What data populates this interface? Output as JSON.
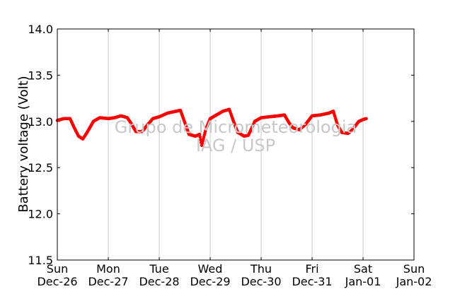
{
  "chart_data": {
    "type": "scatter",
    "ylabel": "Battery voltage (Volt)",
    "ylim": [
      11.5,
      14.0
    ],
    "yticks": [
      "11.5",
      "12.0",
      "12.5",
      "13.0",
      "13.5",
      "14.0"
    ],
    "xlim": [
      "2010-12-26",
      "2011-01-02"
    ],
    "xticks": [
      {
        "day": "Sun",
        "date": "Dec-26"
      },
      {
        "day": "Mon",
        "date": "Dec-27"
      },
      {
        "day": "Tue",
        "date": "Dec-28"
      },
      {
        "day": "Wed",
        "date": "Dec-29"
      },
      {
        "day": "Thu",
        "date": "Dec-30"
      },
      {
        "day": "Fri",
        "date": "Dec-31"
      },
      {
        "day": "Sat",
        "date": "Jan-01"
      },
      {
        "day": "Sun",
        "date": "Jan-02"
      }
    ],
    "grid": "vertical",
    "series": [
      {
        "color": "#ff0000",
        "points": [
          [
            "2010-12-26 00:00",
            13.01
          ],
          [
            "2010-12-26 03:00",
            13.03
          ],
          [
            "2010-12-26 06:00",
            13.03
          ],
          [
            "2010-12-26 08:00",
            12.93
          ],
          [
            "2010-12-26 10:00",
            12.84
          ],
          [
            "2010-12-26 12:00",
            12.81
          ],
          [
            "2010-12-26 14:00",
            12.88
          ],
          [
            "2010-12-26 17:00",
            13.0
          ],
          [
            "2010-12-26 20:00",
            13.04
          ],
          [
            "2010-12-27 00:00",
            13.03
          ],
          [
            "2010-12-27 03:00",
            13.04
          ],
          [
            "2010-12-27 06:00",
            13.06
          ],
          [
            "2010-12-27 09:00",
            13.04
          ],
          [
            "2010-12-27 11:00",
            12.97
          ],
          [
            "2010-12-27 13:00",
            12.89
          ],
          [
            "2010-12-27 16:00",
            12.89
          ],
          [
            "2010-12-27 18:00",
            12.95
          ],
          [
            "2010-12-27 21:00",
            13.03
          ],
          [
            "2010-12-28 00:00",
            13.05
          ],
          [
            "2010-12-28 04:00",
            13.09
          ],
          [
            "2010-12-28 08:00",
            13.11
          ],
          [
            "2010-12-28 10:00",
            13.12
          ],
          [
            "2010-12-28 12:00",
            12.99
          ],
          [
            "2010-12-28 14:00",
            12.86
          ],
          [
            "2010-12-28 17:00",
            12.84
          ],
          [
            "2010-12-28 19:00",
            12.86
          ],
          [
            "2010-12-28 20:00",
            12.74
          ],
          [
            "2010-12-28 22:00",
            12.92
          ],
          [
            "2010-12-29 00:00",
            13.03
          ],
          [
            "2010-12-29 03:00",
            13.07
          ],
          [
            "2010-12-29 06:00",
            13.11
          ],
          [
            "2010-12-29 09:00",
            13.13
          ],
          [
            "2010-12-29 11:00",
            13.0
          ],
          [
            "2010-12-29 13:00",
            12.88
          ],
          [
            "2010-12-29 16:00",
            12.84
          ],
          [
            "2010-12-29 18:00",
            12.85
          ],
          [
            "2010-12-29 21:00",
            13.0
          ],
          [
            "2010-12-30 00:00",
            13.04
          ],
          [
            "2010-12-30 04:00",
            13.05
          ],
          [
            "2010-12-30 08:00",
            13.06
          ],
          [
            "2010-12-30 11:00",
            13.07
          ],
          [
            "2010-12-30 13:00",
            12.99
          ],
          [
            "2010-12-30 15:00",
            12.93
          ],
          [
            "2010-12-30 18:00",
            12.91
          ],
          [
            "2010-12-30 21:00",
            12.97
          ],
          [
            "2010-12-31 00:00",
            13.06
          ],
          [
            "2010-12-31 04:00",
            13.07
          ],
          [
            "2010-12-31 08:00",
            13.09
          ],
          [
            "2010-12-31 10:00",
            13.11
          ],
          [
            "2010-12-31 12:00",
            12.96
          ],
          [
            "2010-12-31 14:00",
            12.88
          ],
          [
            "2010-12-31 17:00",
            12.87
          ],
          [
            "2010-12-31 19:00",
            12.91
          ],
          [
            "2010-12-31 22:00",
            13.0
          ],
          [
            "2011-01-01 00:00",
            13.02
          ],
          [
            "2011-01-01 01:30",
            13.03
          ]
        ]
      }
    ]
  },
  "watermark": {
    "line1": "Grupo de Micrometeorologia",
    "line2": "IAG / USP"
  }
}
